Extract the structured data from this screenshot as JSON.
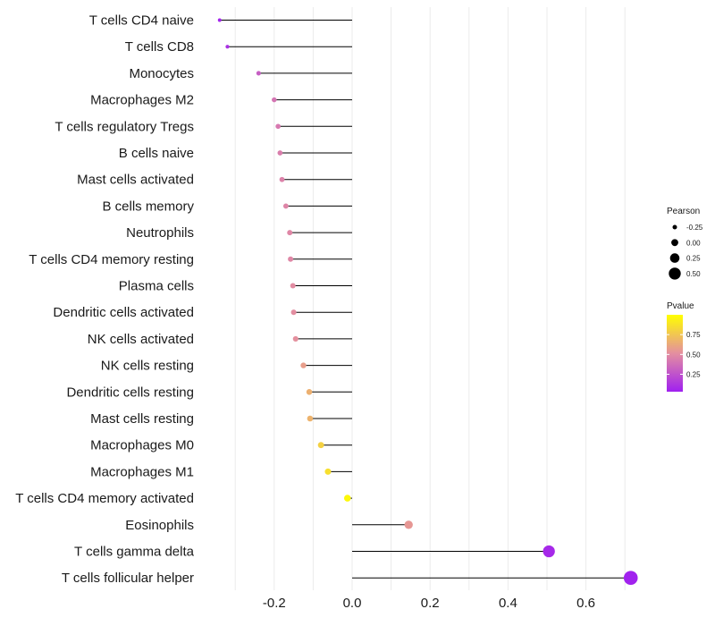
{
  "chart_data": {
    "type": "lollipop",
    "categories": [
      "T cells CD4 naive",
      "T cells CD8",
      "Monocytes",
      "Macrophages M2",
      "T cells regulatory  Tregs ",
      "B cells naive",
      "Mast cells activated",
      "B cells memory",
      "Neutrophils",
      "T cells CD4 memory resting",
      "Plasma cells",
      "Dendritic cells activated",
      "NK cells activated",
      "NK cells resting",
      "Dendritic cells resting",
      "Mast cells resting",
      "Macrophages M0",
      "Macrophages M1",
      "T cells CD4 memory activated",
      "Eosinophils",
      "T cells gamma delta",
      "T cells follicular helper"
    ],
    "pearson": [
      -0.34,
      -0.32,
      -0.24,
      -0.2,
      -0.19,
      -0.185,
      -0.18,
      -0.17,
      -0.16,
      -0.158,
      -0.152,
      -0.15,
      -0.145,
      -0.125,
      -0.11,
      -0.108,
      -0.08,
      -0.062,
      -0.012,
      0.145,
      0.505,
      0.715
    ],
    "pvalue": [
      0.05,
      0.1,
      0.3,
      0.4,
      0.42,
      0.44,
      0.46,
      0.47,
      0.48,
      0.48,
      0.5,
      0.51,
      0.52,
      0.58,
      0.66,
      0.67,
      0.8,
      0.86,
      0.97,
      0.55,
      0.07,
      0.04
    ],
    "x_ticks": [
      -0.2,
      0.0,
      0.2,
      0.4,
      0.6
    ],
    "x_tick_labels": [
      "-0.2",
      "0.0",
      "0.2",
      "0.4",
      "0.6"
    ],
    "xlim": [
      -0.37,
      0.76
    ],
    "xlabel": "",
    "ylabel": "",
    "legend_size": {
      "title": "Pearson",
      "values": [
        -0.25,
        0.0,
        0.25,
        0.5
      ],
      "labels": [
        "-0.25",
        "0.00",
        "0.25",
        "0.50"
      ]
    },
    "legend_color": {
      "title": "Pvalue",
      "ticks": [
        0.25,
        0.5,
        0.75
      ],
      "labels": [
        "0.25",
        "0.50",
        "0.75"
      ],
      "range": [
        0.03,
        1.0
      ],
      "colors": [
        "#a020f0",
        "#e48fa0",
        "#ffff00"
      ]
    }
  }
}
